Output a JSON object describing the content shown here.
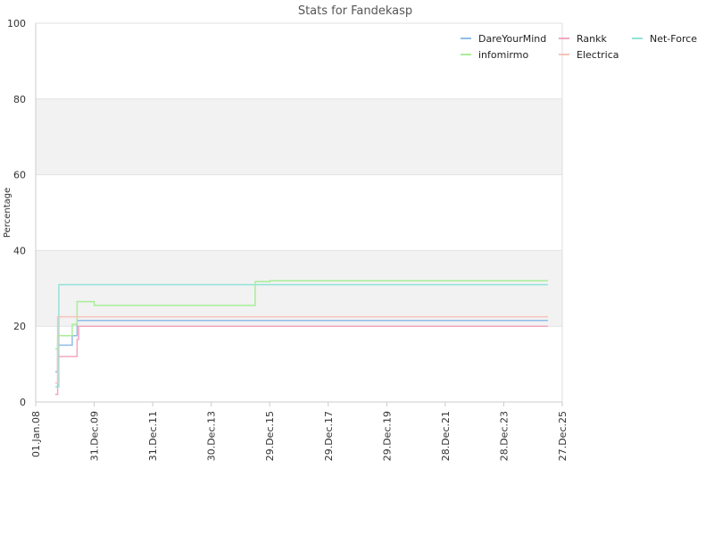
{
  "chart_data": {
    "type": "line",
    "title": "Stats for Fandekasp",
    "ylabel": "Percentage",
    "xlabel": "",
    "x_ticks": [
      "01.Jan.08",
      "31.Dec.09",
      "31.Dec.11",
      "30.Dec.13",
      "29.Dec.15",
      "29.Dec.17",
      "29.Dec.19",
      "28.Dec.21",
      "28.Dec.23",
      "27.Dec.25"
    ],
    "y_ticks": [
      "0",
      "20",
      "40",
      "60",
      "80",
      "100"
    ],
    "xlim": [
      "2008-01-01",
      "2025-12-27"
    ],
    "ylim": [
      0,
      100
    ],
    "grid": "horizontal",
    "band_colors": [
      "#ffffff",
      "#f2f2f2"
    ],
    "legend_position": "top-right",
    "series": [
      {
        "name": "DareYourMind",
        "color": "#8fbde8",
        "points": [
          [
            "2008-09-01",
            8
          ],
          [
            "2008-10-01",
            15
          ],
          [
            "2009-04-01",
            17.5
          ],
          [
            "2009-06-01",
            21.5
          ],
          [
            "2025-07-01",
            21.5
          ]
        ]
      },
      {
        "name": "Rankk",
        "color": "#f3a6c0",
        "points": [
          [
            "2008-09-01",
            2
          ],
          [
            "2008-10-01",
            12
          ],
          [
            "2009-06-01",
            16.5
          ],
          [
            "2009-06-20",
            20
          ],
          [
            "2025-07-01",
            20
          ]
        ]
      },
      {
        "name": "Net-Force",
        "color": "#93e3d9",
        "points": [
          [
            "2008-09-01",
            4
          ],
          [
            "2008-10-15",
            31
          ],
          [
            "2015-08-15",
            31
          ],
          [
            "2025-07-01",
            31
          ]
        ]
      },
      {
        "name": "infomirmo",
        "color": "#a8ee98",
        "points": [
          [
            "2008-09-01",
            14
          ],
          [
            "2008-10-01",
            17.5
          ],
          [
            "2009-04-01",
            20.5
          ],
          [
            "2009-06-01",
            26.5
          ],
          [
            "2010-01-01",
            25.5
          ],
          [
            "2015-07-01",
            30
          ],
          [
            "2015-07-02",
            31.8
          ],
          [
            "2016-01-01",
            32
          ],
          [
            "2025-07-01",
            32
          ]
        ]
      },
      {
        "name": "Electrica",
        "color": "#f7c2bc",
        "points": [
          [
            "2008-09-01",
            5
          ],
          [
            "2008-10-01",
            22.5
          ],
          [
            "2025-07-01",
            22.5
          ]
        ]
      }
    ]
  }
}
